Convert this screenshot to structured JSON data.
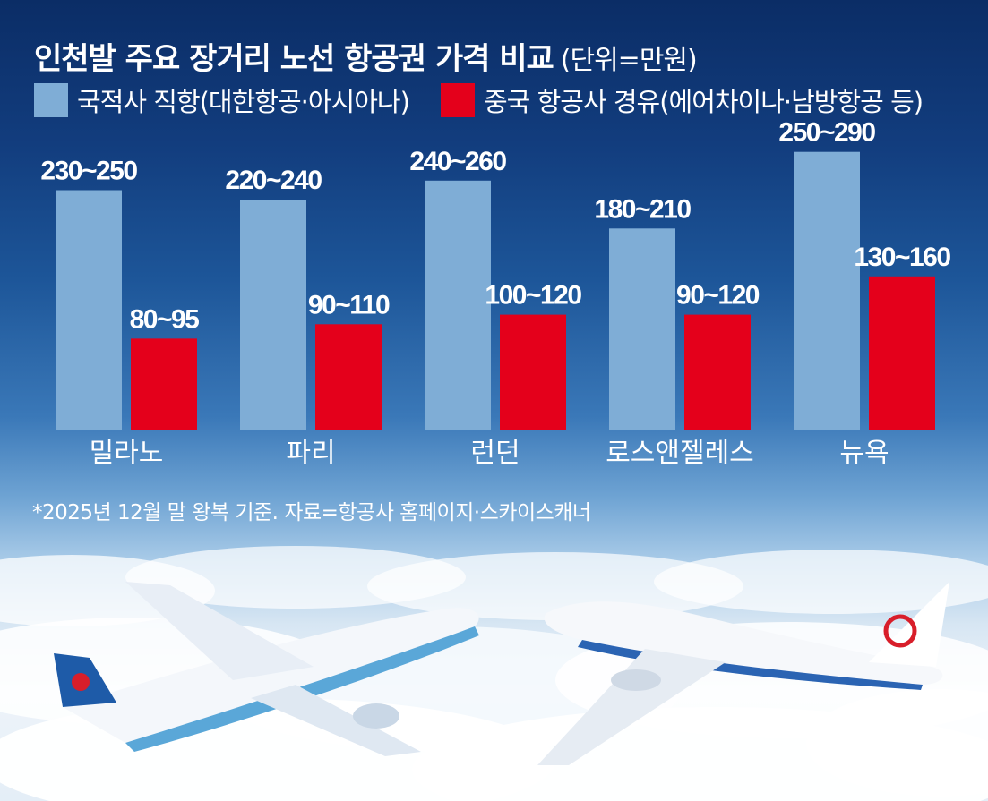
{
  "chart_data": {
    "type": "bar",
    "title": "인천발 주요 장거리 노선 항공권 가격 비교",
    "unit": "(단위=만원)",
    "categories": [
      "밀라노",
      "파리",
      "런던",
      "로스앤젤레스",
      "뉴욕"
    ],
    "series": [
      {
        "name": "국적사 직항(대한항공·아시아나)",
        "color": "#7fadd6",
        "ranges": [
          [
            230,
            250
          ],
          [
            220,
            240
          ],
          [
            240,
            260
          ],
          [
            180,
            210
          ],
          [
            250,
            290
          ]
        ],
        "labels": [
          "230~250",
          "220~240",
          "240~260",
          "180~210",
          "250~290"
        ]
      },
      {
        "name": "중국 항공사 경유(에어차이나·남방항공 등)",
        "color": "#e4001b",
        "ranges": [
          [
            80,
            95
          ],
          [
            90,
            110
          ],
          [
            100,
            120
          ],
          [
            90,
            120
          ],
          [
            130,
            160
          ]
        ],
        "labels": [
          "80~95",
          "90~110",
          "100~120",
          "90~120",
          "130~160"
        ]
      }
    ],
    "ylim": [
      0,
      300
    ],
    "xlabel": "",
    "ylabel": "",
    "grid": false,
    "legend_position": "top-left",
    "footnote": "*2025년 12월 말 왕복 기준. 자료=항공사 홈페이지·스카이스캐너"
  }
}
